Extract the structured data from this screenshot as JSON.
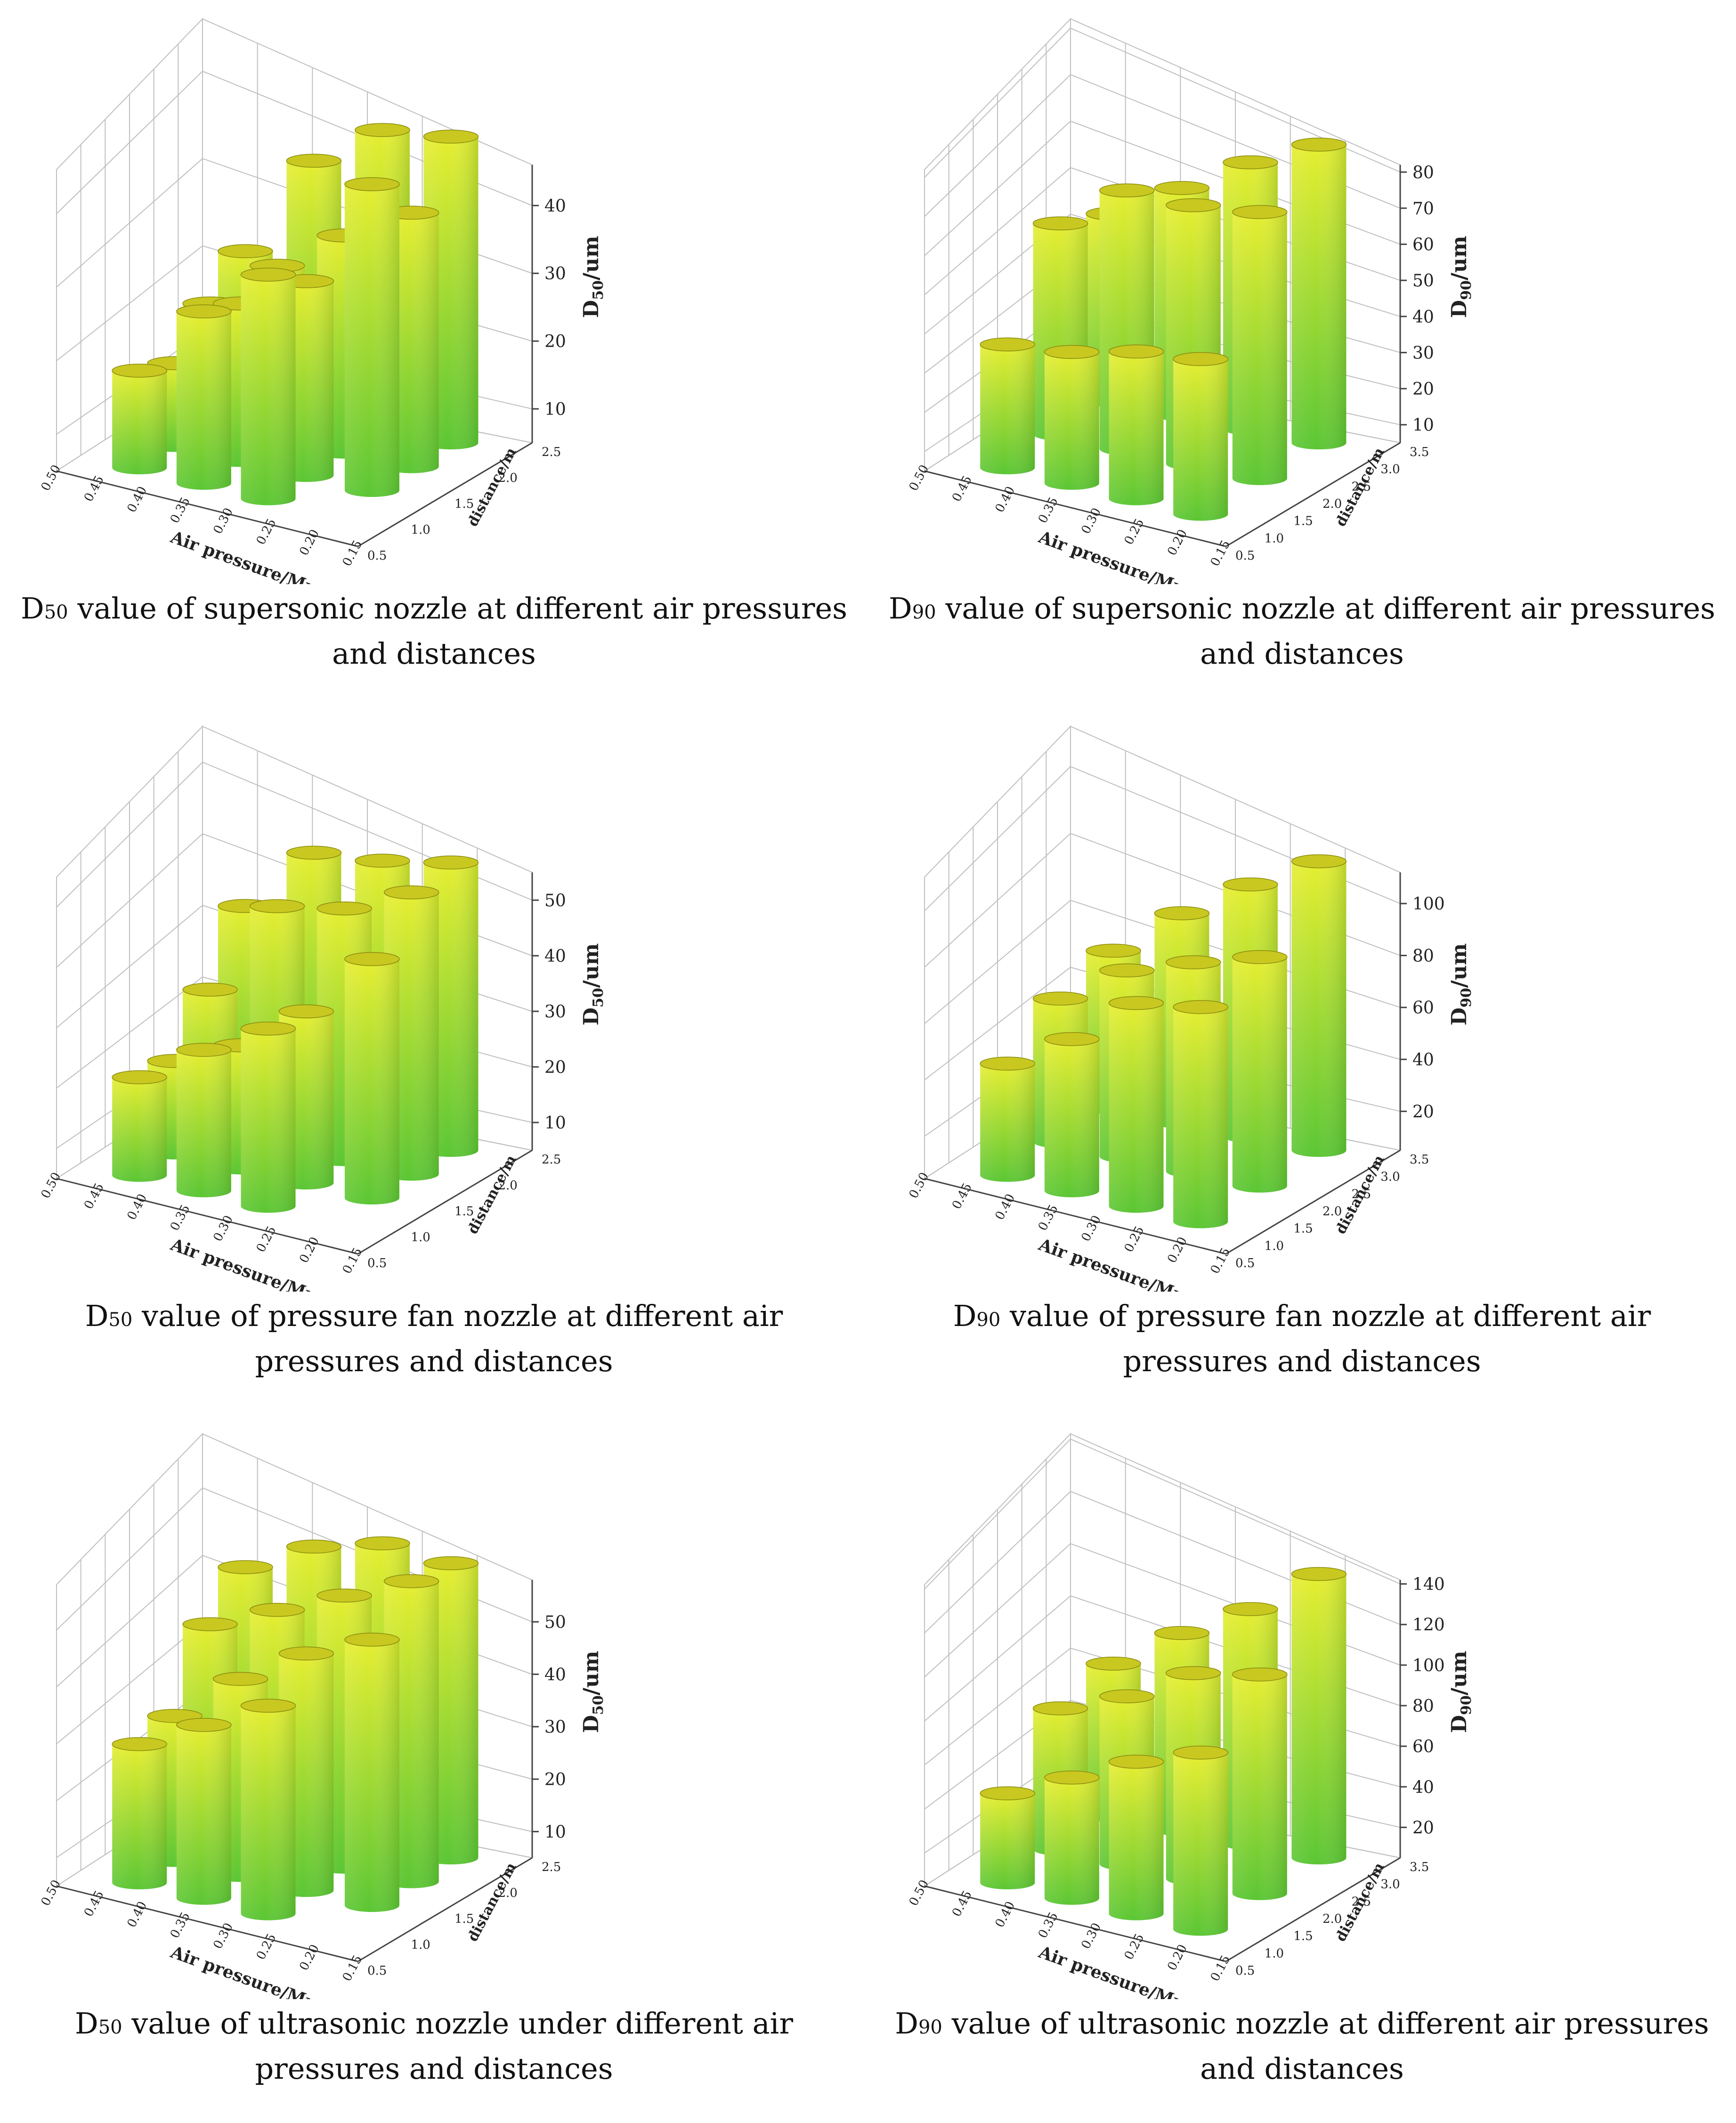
{
  "chart_data": [
    {
      "type": "bar3d",
      "metric": "D",
      "metric_sub": "50",
      "caption_rest": " value of supersonic nozzle at different air pressures and distances",
      "zlabel": "D50/um",
      "zlabel_main": "D",
      "zlabel_sub": "50",
      "zlabel_unit": "/um",
      "xlabel": "Air pressure/Mpa",
      "ylabel": "distance/m",
      "zlim": [
        5,
        46
      ],
      "zticks": [
        10,
        20,
        30,
        40
      ],
      "xticks": [
        "0.50",
        "0.45",
        "0.40",
        "0.35",
        "0.30",
        "0.25",
        "0.20",
        "0.15"
      ],
      "yticks": [
        "0.5",
        "1.0",
        "1.5",
        "2.0",
        "2.5"
      ],
      "rows": [
        {
          "distance": "2.0 m",
          "values": [
            25,
            39,
            45,
            46
          ]
        },
        {
          "distance": "1.5 m",
          "values": [
            21,
            28,
            34,
            39
          ]
        },
        {
          "distance": "1.0 m",
          "values": [
            16,
            26,
            31,
            46
          ]
        },
        {
          "distance": "0.5 m",
          "values": [
            18,
            28,
            35
          ]
        }
      ]
    },
    {
      "type": "bar3d",
      "metric": "D",
      "metric_sub": "90",
      "caption_rest": " value of supersonic nozzle at different air pressures and distances",
      "zlabel": "D90/um",
      "zlabel_main": "D",
      "zlabel_sub": "90",
      "zlabel_unit": "/um",
      "xlabel": "Air pressure/Mpa",
      "ylabel": "distance/m",
      "zlim": [
        5,
        82
      ],
      "zticks": [
        10,
        20,
        30,
        40,
        50,
        60,
        70,
        80
      ],
      "xticks": [
        "0.50",
        "0.45",
        "0.40",
        "0.35",
        "0.30",
        "0.25",
        "0.20",
        "0.15"
      ],
      "yticks": [
        "0.5",
        "1.0",
        "1.5",
        "2.0",
        "2.5",
        "3.0",
        "3.5"
      ],
      "rows": [
        {
          "distance": "3.0 m",
          "values": [
            52,
            62,
            72,
            80
          ]
        },
        {
          "distance": "2.0 m",
          "values": [
            58,
            70,
            70,
            72
          ]
        },
        {
          "distance": "1.0 m",
          "values": [
            36,
            38,
            42,
            44
          ]
        }
      ]
    },
    {
      "type": "bar3d",
      "metric": "D",
      "metric_sub": "50",
      "caption_rest": " value of pressure fan nozzle at different air pressures and distances",
      "zlabel": "D50/um",
      "zlabel_main": "D",
      "zlabel_sub": "50",
      "zlabel_unit": "/um",
      "xlabel": "Air pressure/Mpa",
      "ylabel": "distance/m",
      "zlim": [
        5,
        55
      ],
      "zticks": [
        10,
        20,
        30,
        40,
        50
      ],
      "xticks": [
        "0.50",
        "0.45",
        "0.40",
        "0.35",
        "0.30",
        "0.25",
        "0.20",
        "0.15"
      ],
      "yticks": [
        "0.5",
        "1.0",
        "1.5",
        "2.0",
        "2.5"
      ],
      "rows": [
        {
          "distance": "2.0 m",
          "values": [
            38,
            49,
            50,
            52
          ]
        },
        {
          "distance": "1.5 m",
          "values": [
            28,
            44,
            46,
            51
          ]
        },
        {
          "distance": "1.0 m",
          "values": [
            20,
            25,
            33,
            44
          ]
        },
        {
          "distance": "0.5 m",
          "values": [
            21,
            28,
            34
          ]
        }
      ]
    },
    {
      "type": "bar3d",
      "metric": "D",
      "metric_sub": "90",
      "caption_rest": " value of pressure fan nozzle at different air pressures and distances",
      "zlabel": "D90/um",
      "zlabel_main": "D",
      "zlabel_sub": "90",
      "zlabel_unit": "/um",
      "xlabel": "Air pressure/Mpa",
      "ylabel": "distance/m",
      "zlim": [
        5,
        112
      ],
      "zticks": [
        20,
        40,
        60,
        80,
        100
      ],
      "xticks": [
        "0.50",
        "0.45",
        "0.40",
        "0.35",
        "0.30",
        "0.25",
        "0.20",
        "0.15"
      ],
      "yticks": [
        "0.5",
        "1.0",
        "1.5",
        "2.0",
        "2.5",
        "3.0",
        "3.5"
      ],
      "rows": [
        {
          "distance": "3.0 m",
          "values": [
            60,
            78,
            93,
            106
          ]
        },
        {
          "distance": "2.0 m",
          "values": [
            55,
            70,
            78,
            85
          ]
        },
        {
          "distance": "1.0 m",
          "values": [
            44,
            58,
            76,
            80
          ]
        }
      ]
    },
    {
      "type": "bar3d",
      "metric": "D",
      "metric_sub": "50",
      "caption_rest": " value of ultrasonic nozzle under different air pressures and distances",
      "zlabel": "D50/um",
      "zlabel_main": "D",
      "zlabel_sub": "50",
      "zlabel_unit": "/um",
      "xlabel": "Air pressure/Mpa",
      "ylabel": "distance/m",
      "zlim": [
        5,
        58
      ],
      "zticks": [
        10,
        20,
        30,
        40,
        50
      ],
      "xticks": [
        "0.50",
        "0.45",
        "0.40",
        "0.35",
        "0.30",
        "0.25",
        "0.20",
        "0.15"
      ],
      "yticks": [
        "0.5",
        "1.0",
        "1.5",
        "2.0",
        "2.5"
      ],
      "rows": [
        {
          "distance": "2.0 m",
          "values": [
            48,
            54,
            57,
            56
          ]
        },
        {
          "distance": "1.5 m",
          "values": [
            42,
            47,
            52,
            57
          ]
        },
        {
          "distance": "1.0 m",
          "values": [
            30,
            39,
            46,
            51
          ]
        },
        {
          "distance": "0.5 m",
          "values": [
            29,
            35,
            41
          ]
        }
      ]
    },
    {
      "type": "bar3d",
      "metric": "D",
      "metric_sub": "90",
      "caption_rest": " value of ultrasonic nozzle at different air pressures and distances",
      "zlabel": "D90/um",
      "zlabel_main": "D",
      "zlabel_sub": "90",
      "zlabel_unit": "/um",
      "xlabel": "Air pressure/Mpa",
      "ylabel": "distance/m",
      "zlim": [
        5,
        142
      ],
      "zticks": [
        20,
        40,
        60,
        80,
        100,
        120,
        140
      ],
      "xticks": [
        "0.50",
        "0.45",
        "0.40",
        "0.35",
        "0.30",
        "0.25",
        "0.20",
        "0.15"
      ],
      "yticks": [
        "0.5",
        "1.0",
        "1.5",
        "2.0",
        "2.5",
        "3.0",
        "3.5"
      ],
      "rows": [
        {
          "distance": "3.0 m",
          "values": [
            73,
            93,
            110,
            132
          ]
        },
        {
          "distance": "2.0 m",
          "values": [
            68,
            80,
            97,
            103
          ]
        },
        {
          "distance": "1.0 m",
          "values": [
            45,
            59,
            73,
            84
          ]
        }
      ]
    }
  ],
  "colors": {
    "bar_top": "#e6ee30",
    "bar_bottom": "#5bc634",
    "bar_cap": "#c8c820",
    "grid": "#bfbfbf",
    "axis": "#444444"
  }
}
